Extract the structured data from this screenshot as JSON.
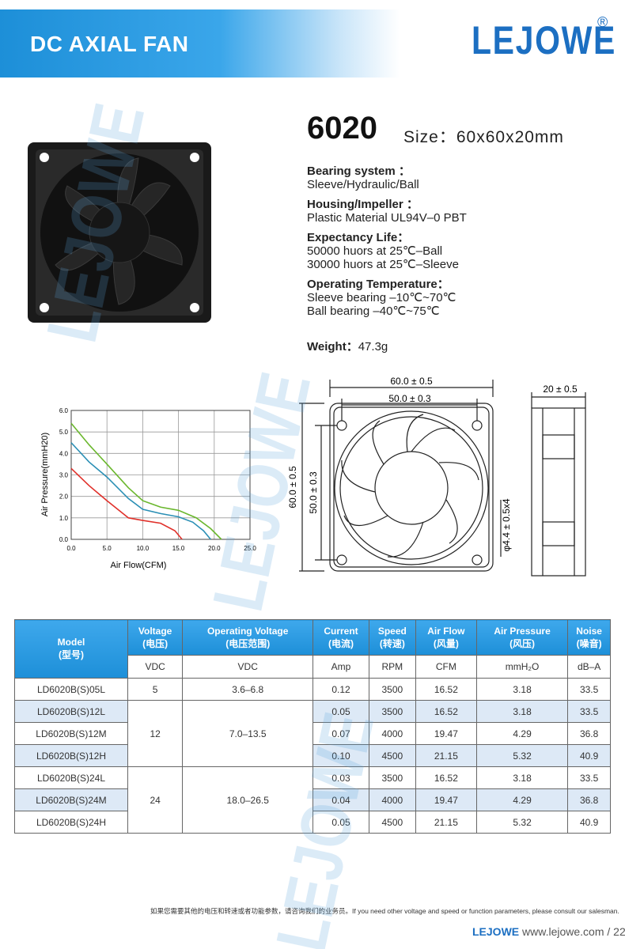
{
  "header": {
    "title": "DC AXIAL FAN",
    "brand": "LEJOWE",
    "registered": "®"
  },
  "product": {
    "model": "6020",
    "size_label": "Size：",
    "size": "60x60x20mm"
  },
  "specs": [
    {
      "label": "Bearing system ：",
      "lines": [
        "Sleeve/Hydraulic/Ball"
      ]
    },
    {
      "label": "Housing/Impeller ：",
      "lines": [
        "Plastic Material UL94V–0 PBT"
      ]
    },
    {
      "label": "Expectancy Life：",
      "lines": [
        "50000 huors at 25℃–Ball",
        "30000 huors at 25℃–Sleeve"
      ]
    },
    {
      "label": "Operating Temperature：",
      "lines": [
        "Sleeve bearing –10℃~70℃",
        "Ball  bearing –40℃~75℃"
      ]
    }
  ],
  "weight": {
    "label": "Weight：",
    "value": "47.3g"
  },
  "watermark": "LEJOWE",
  "chart_data": {
    "type": "line",
    "x_label": "Air Flow(CFM)",
    "y_label": "Air Pressure(mmH20)",
    "xlim": [
      0,
      25
    ],
    "ylim": [
      0,
      6
    ],
    "xticks": [
      {
        "value": 0,
        "label": "0.0"
      },
      {
        "value": 5,
        "label": "5.0"
      },
      {
        "value": 10,
        "label": "10.0"
      },
      {
        "value": 15,
        "label": "15.0"
      },
      {
        "value": 20,
        "label": "20.0"
      },
      {
        "value": 25,
        "label": "25.0"
      }
    ],
    "yticks": [
      {
        "value": 0,
        "label": "0.0"
      },
      {
        "value": 1,
        "label": "1.0"
      },
      {
        "value": 2,
        "label": "2.0"
      },
      {
        "value": 3,
        "label": "3.0"
      },
      {
        "value": 4,
        "label": "4.0"
      },
      {
        "value": 5,
        "label": "5.0"
      },
      {
        "value": 6,
        "label": "6.0"
      }
    ],
    "grid": true,
    "series": [
      {
        "color": "#e0302a",
        "x": [
          0,
          2.5,
          5,
          8,
          10,
          12.5,
          14.5,
          15.5
        ],
        "values": [
          3.3,
          2.5,
          1.8,
          1.0,
          0.88,
          0.75,
          0.4,
          0
        ]
      },
      {
        "color": "#2a8fb5",
        "x": [
          0,
          2.5,
          5,
          8,
          10,
          12.5,
          15,
          17,
          18.5,
          19.5
        ],
        "values": [
          4.5,
          3.6,
          2.9,
          1.9,
          1.4,
          1.2,
          1.05,
          0.8,
          0.4,
          0
        ]
      },
      {
        "color": "#6ab72d",
        "x": [
          0,
          2.5,
          5,
          8,
          10,
          12.5,
          15,
          17.5,
          19.5,
          21
        ],
        "values": [
          5.4,
          4.4,
          3.5,
          2.4,
          1.8,
          1.5,
          1.35,
          1.0,
          0.5,
          0
        ]
      }
    ]
  },
  "dimensions": {
    "width": "60.0 ± 0.5",
    "hole_span": "50.0 ± 0.3",
    "height": "60.0 ± 0.5",
    "hole_span_v": "50.0 ± 0.3",
    "hole": "φ4.4 ± 0.5x4",
    "depth": "20 ± 0.5"
  },
  "table": {
    "headers": [
      [
        "Model",
        "(型号)"
      ],
      [
        "Voltage",
        "(电压)"
      ],
      [
        "Operating Voltage",
        "(电压范围)"
      ],
      [
        "Current",
        "(电流)"
      ],
      [
        "Speed",
        "(转速)"
      ],
      [
        "Air Flow",
        "(风量)"
      ],
      [
        "Air Pressure",
        "(风压)"
      ],
      [
        "Noise",
        "(噪音)"
      ]
    ],
    "units": [
      "VDC",
      "VDC",
      "Amp",
      "RPM",
      "CFM",
      "mmH₂O",
      "dB–A"
    ],
    "groups": [
      {
        "voltage": "5",
        "operating_voltage": "3.6–6.8",
        "rows": [
          {
            "model": "LD6020B(S)05L",
            "values": [
              "0.12",
              "3500",
              "16.52",
              "3.18",
              "33.5"
            ]
          }
        ]
      },
      {
        "voltage": "12",
        "operating_voltage": "7.0–13.5",
        "rows": [
          {
            "model": "LD6020B(S)12L",
            "values": [
              "0.05",
              "3500",
              "16.52",
              "3.18",
              "33.5"
            ]
          },
          {
            "model": "LD6020B(S)12M",
            "values": [
              "0.07",
              "4000",
              "19.47",
              "4.29",
              "36.8"
            ]
          },
          {
            "model": "LD6020B(S)12H",
            "values": [
              "0.10",
              "4500",
              "21.15",
              "5.32",
              "40.9"
            ]
          }
        ]
      },
      {
        "voltage": "24",
        "operating_voltage": "18.0–26.5",
        "rows": [
          {
            "model": "LD6020B(S)24L",
            "values": [
              "0.03",
              "3500",
              "16.52",
              "3.18",
              "33.5"
            ]
          },
          {
            "model": "LD6020B(S)24M",
            "values": [
              "0.04",
              "4000",
              "19.47",
              "4.29",
              "36.8"
            ]
          },
          {
            "model": "LD6020B(S)24H",
            "values": [
              "0.05",
              "4500",
              "21.15",
              "5.32",
              "40.9"
            ]
          }
        ]
      }
    ]
  },
  "footer": {
    "note_cn": "如果您需要其他的电压和转速或者功能参数，请咨询我们的业务员。",
    "note_en": "If you need other voltage and speed or function parameters, please consult our salesman.",
    "brand": "LEJOWE",
    "site": "www.lejowe.com / 22"
  }
}
